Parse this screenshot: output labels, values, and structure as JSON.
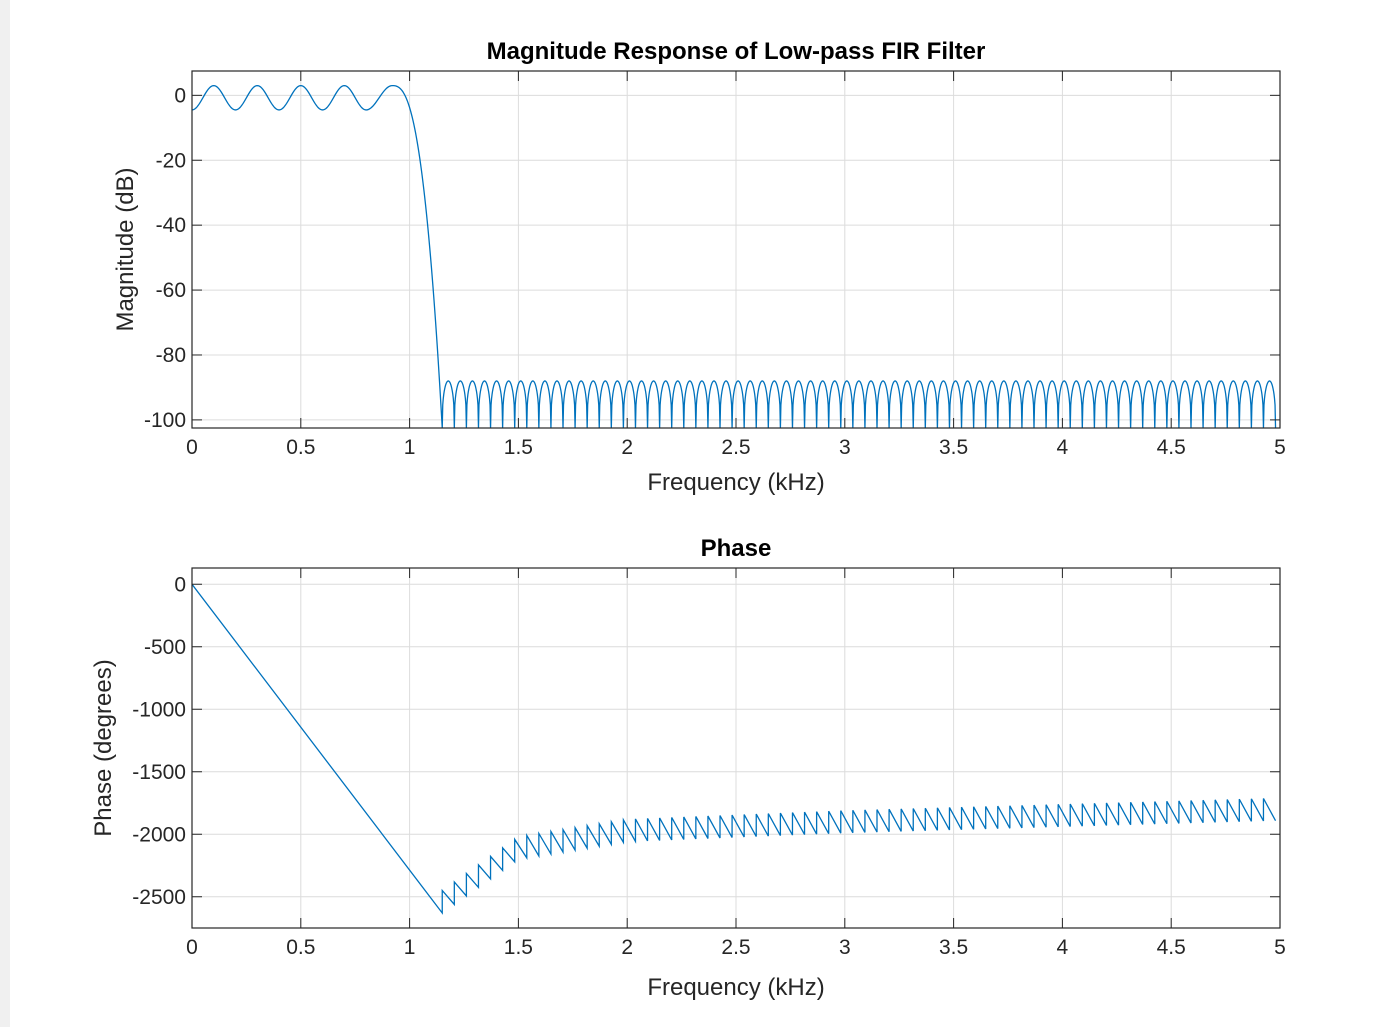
{
  "figure": {
    "background": "#ffffff",
    "window_background": "#f0f0f0"
  },
  "chart_data": [
    {
      "type": "line",
      "title": "Magnitude Response of Low-pass FIR Filter",
      "xlabel": "Frequency (kHz)",
      "ylabel": "Magnitude (dB)",
      "xlim": [
        0,
        5
      ],
      "ylim": [
        -102.5,
        7.5
      ],
      "xticks": [
        0,
        0.5,
        1,
        1.5,
        2,
        2.5,
        3,
        3.5,
        4,
        4.5,
        5
      ],
      "xtick_labels": [
        "0",
        "0.5",
        "1",
        "1.5",
        "2",
        "2.5",
        "3",
        "3.5",
        "4",
        "4.5",
        "5"
      ],
      "yticks": [
        0,
        -20,
        -40,
        -60,
        -80,
        -100
      ],
      "ytick_labels": [
        "0",
        "-20",
        "-40",
        "-60",
        "-80",
        "-100"
      ],
      "grid": true,
      "series_color": "#0072bd",
      "passband": {
        "x_start": 0,
        "x_end": 0.92,
        "start_value": -4.5,
        "ripple_peaks": 3,
        "ripple_troughs": -4.5,
        "peak_positions": [
          0.1,
          0.3,
          0.5,
          0.7,
          0.92
        ],
        "trough_positions": [
          0.2,
          0.4,
          0.6,
          0.8
        ]
      },
      "transition": {
        "x_start": 0.92,
        "x_end": 1.15,
        "end_value": -102.5
      },
      "stopband": {
        "x_start": 1.15,
        "x_end": 5,
        "lobe_peak": -88,
        "lobe_width": 0.0555,
        "floor": -102.5
      }
    },
    {
      "type": "line",
      "title": "Phase",
      "xlabel": "Frequency (kHz)",
      "ylabel": "Phase (degrees)",
      "xlim": [
        0,
        5
      ],
      "ylim": [
        -2750,
        130
      ],
      "xticks": [
        0,
        0.5,
        1,
        1.5,
        2,
        2.5,
        3,
        3.5,
        4,
        4.5,
        5
      ],
      "xtick_labels": [
        "0",
        "0.5",
        "1",
        "1.5",
        "2",
        "2.5",
        "3",
        "3.5",
        "4",
        "4.5",
        "5"
      ],
      "yticks": [
        0,
        -500,
        -1000,
        -1500,
        -2000,
        -2500
      ],
      "ytick_labels": [
        "0",
        "-500",
        "-1000",
        "-1500",
        "-2000",
        "-2500"
      ],
      "grid": true,
      "series_color": "#0072bd",
      "linear_segment": {
        "x_start": 0,
        "y_start": 0,
        "x_end": 1.15,
        "y_end": -2630
      },
      "sawtooth": {
        "x_start": 1.15,
        "x_end": 5,
        "period": 0.0555,
        "jump": 180,
        "low_start": -2630,
        "low_end": -1890,
        "low_curve": [
          [
            1.15,
            -2630
          ],
          [
            1.5,
            -2200
          ],
          [
            2,
            -2060
          ],
          [
            3,
            -1990
          ],
          [
            4,
            -1940
          ],
          [
            5,
            -1890
          ]
        ]
      }
    }
  ]
}
